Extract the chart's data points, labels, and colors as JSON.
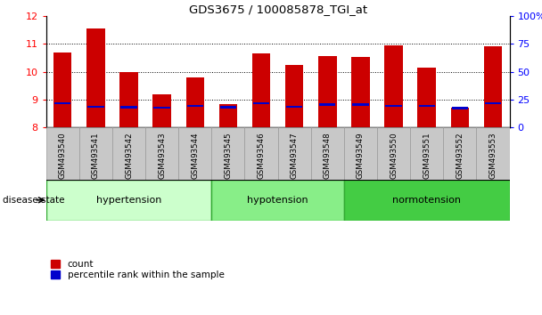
{
  "title": "GDS3675 / 100085878_TGI_at",
  "samples": [
    "GSM493540",
    "GSM493541",
    "GSM493542",
    "GSM493543",
    "GSM493544",
    "GSM493545",
    "GSM493546",
    "GSM493547",
    "GSM493548",
    "GSM493549",
    "GSM493550",
    "GSM493551",
    "GSM493552",
    "GSM493553"
  ],
  "count_values": [
    10.7,
    11.55,
    10.0,
    9.2,
    9.8,
    8.85,
    10.65,
    10.25,
    10.55,
    10.52,
    10.95,
    10.15,
    8.7,
    10.9
  ],
  "percentile_values": [
    8.88,
    8.75,
    8.73,
    8.72,
    8.77,
    8.73,
    8.88,
    8.75,
    8.82,
    8.82,
    8.78,
    8.77,
    8.7,
    8.88
  ],
  "bar_bottom": 8.0,
  "ylim_left": [
    8.0,
    12.0
  ],
  "ylim_right": [
    0,
    100
  ],
  "yticks_left": [
    8,
    9,
    10,
    11,
    12
  ],
  "yticks_right": [
    0,
    25,
    50,
    75,
    100
  ],
  "ytick_labels_right": [
    "0",
    "25",
    "50",
    "75",
    "100%"
  ],
  "groups": [
    {
      "label": "hypertension",
      "start": 0,
      "end": 5,
      "color": "#ccffcc"
    },
    {
      "label": "hypotension",
      "start": 5,
      "end": 9,
      "color": "#88ee88"
    },
    {
      "label": "normotension",
      "start": 9,
      "end": 14,
      "color": "#44cc44"
    }
  ],
  "disease_state_label": "disease state",
  "bar_color_red": "#cc0000",
  "bar_color_blue": "#0000cc",
  "legend_count_label": "count",
  "legend_percentile_label": "percentile rank within the sample",
  "xtick_bg_color": "#c8c8c8",
  "xtick_edge_color": "#999999",
  "dotted_levels": [
    9,
    10,
    11
  ]
}
